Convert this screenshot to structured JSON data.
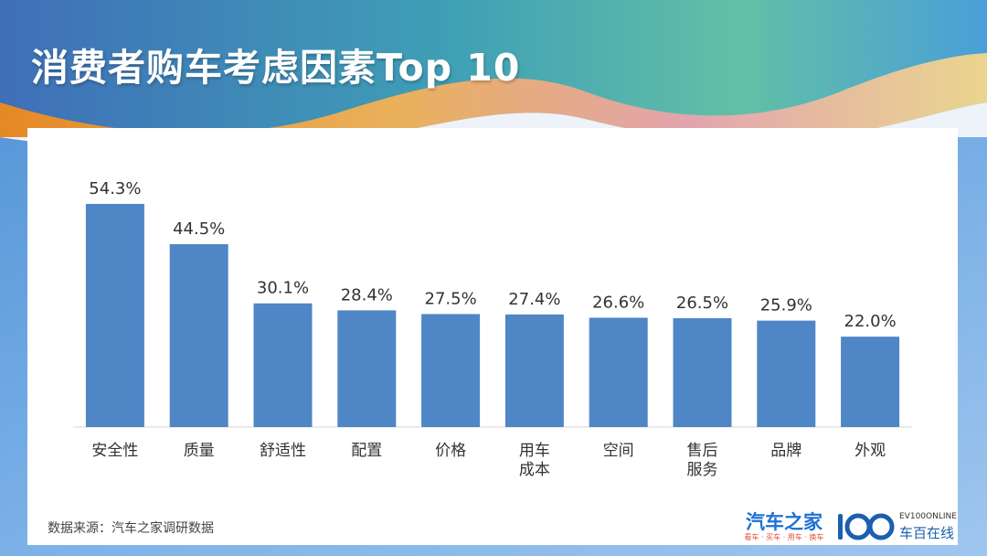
{
  "title": "消费者购车考虑因素Top 10",
  "source": "数据来源：汽车之家调研数据",
  "logos": {
    "autohome_name": "汽车之家",
    "autohome_slogan": "看车 · 买车 · 用车 · 换车",
    "ev100_en": "EV100ONLINE",
    "ev100_cn": "车百在线"
  },
  "colors": {
    "bar": "#4f86c6",
    "label": "#333333",
    "axis": "#d9d9d9"
  },
  "chart_data": {
    "type": "bar",
    "title": "消费者购车考虑因素Top 10",
    "categories": [
      "安全性",
      "质量",
      "舒适性",
      "配置",
      "价格",
      "用车\n成本",
      "空间",
      "售后\n服务",
      "品牌",
      "外观"
    ],
    "values": [
      54.3,
      44.5,
      30.1,
      28.4,
      27.5,
      27.4,
      26.6,
      26.5,
      25.9,
      22.0
    ],
    "value_labels": [
      "54.3%",
      "44.5%",
      "30.1%",
      "28.4%",
      "27.5%",
      "27.4%",
      "26.6%",
      "26.5%",
      "25.9%",
      "22.0%"
    ],
    "unit": "%",
    "ylim": [
      0,
      54.3
    ],
    "grid": false,
    "legend": "none"
  }
}
